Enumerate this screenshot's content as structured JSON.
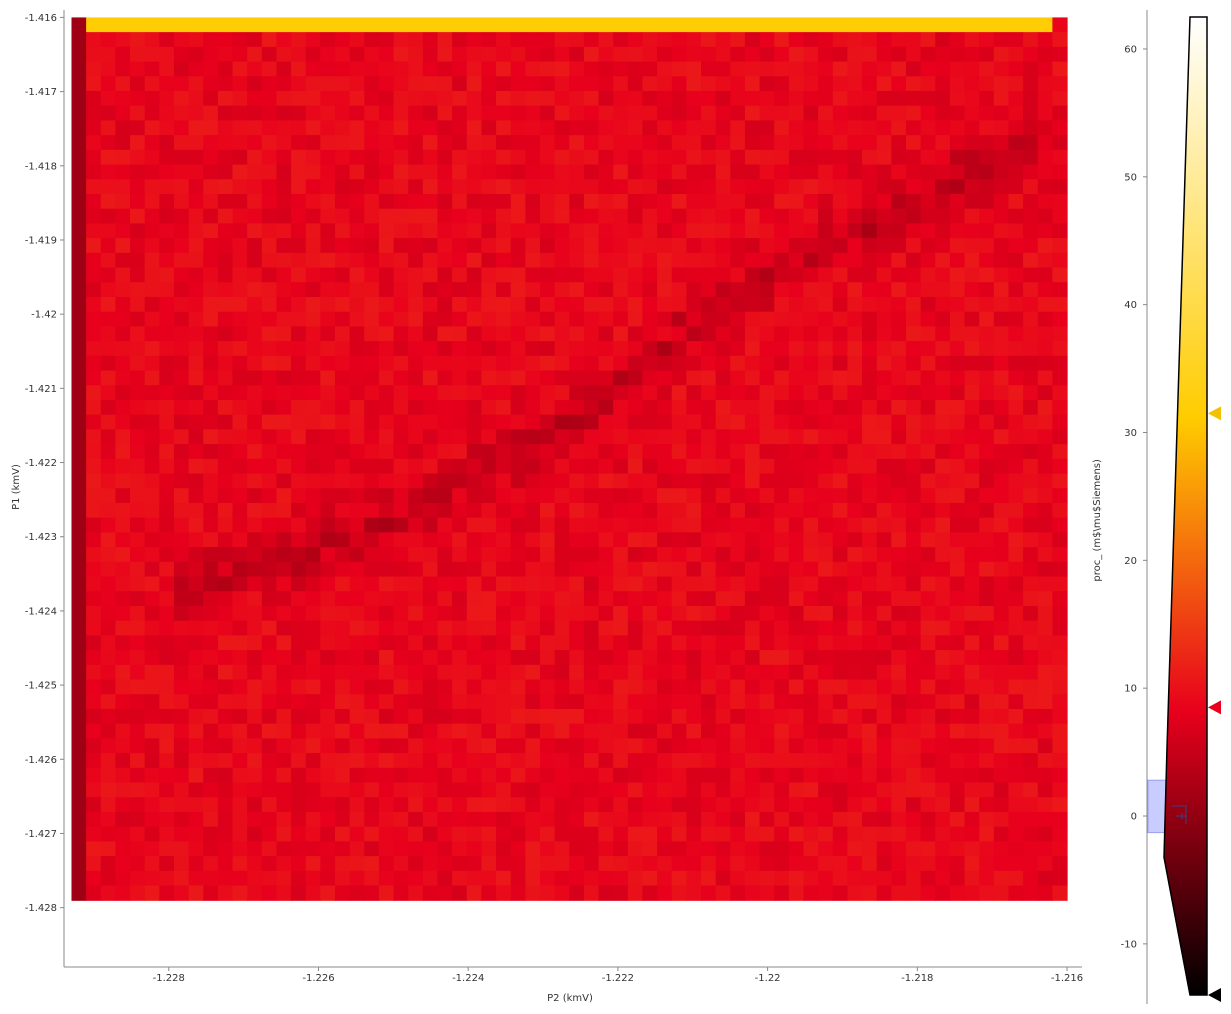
{
  "chart_data": {
    "type": "heatmap",
    "title": "",
    "xlabel": "P2 (kmV)",
    "ylabel": "P1 (kmV)",
    "xlim": [
      -1.2294,
      -1.2158
    ],
    "ylim": [
      -1.4288,
      -1.4159
    ],
    "x_ticks": [
      -1.228,
      -1.226,
      -1.224,
      -1.222,
      -1.22,
      -1.218,
      -1.216
    ],
    "x_tick_labels": [
      "-1.228",
      "-1.226",
      "-1.224",
      "-1.222",
      "-1.22",
      "-1.218",
      "-1.216"
    ],
    "y_ticks": [
      -1.416,
      -1.417,
      -1.418,
      -1.419,
      -1.42,
      -1.421,
      -1.422,
      -1.423,
      -1.424,
      -1.425,
      -1.426,
      -1.427,
      -1.428
    ],
    "y_tick_labels": [
      "-1.416",
      "-1.417",
      "-1.418",
      "-1.419",
      "-1.42",
      "-1.421",
      "-1.422",
      "-1.423",
      "-1.424",
      "-1.425",
      "-1.426",
      "-1.427",
      "-1.428"
    ],
    "grid": {
      "x_start": -1.2293,
      "x_end": -1.216,
      "n_cols": 68,
      "y_start": -1.416,
      "y_end": -1.4279,
      "n_rows": 60
    },
    "typical_value": 9.0,
    "first_row_value": 32.0,
    "first_col_value": 1.5,
    "features": [
      {
        "name": "ridge",
        "points": [
          [
            -1.2163,
            -1.4177
          ],
          [
            -1.2175,
            -1.4182
          ],
          [
            -1.219,
            -1.419
          ],
          [
            -1.22,
            -1.4195
          ],
          [
            -1.221,
            -1.4202
          ],
          [
            -1.222,
            -1.421
          ],
          [
            -1.2232,
            -1.4218
          ],
          [
            -1.2245,
            -1.4225
          ],
          [
            -1.226,
            -1.4232
          ],
          [
            -1.228,
            -1.4237
          ]
        ],
        "value": 4.5
      }
    ],
    "colorbar": {
      "label": "proc_ (m$\\mu$Siemens)",
      "ticks": [
        60,
        50,
        40,
        30,
        20,
        10,
        0,
        -10
      ],
      "tick_labels": [
        "60",
        "50",
        "40",
        "30",
        "20",
        "10",
        "0",
        "-10"
      ],
      "range": [
        -14,
        62.5
      ],
      "colormap": "hot",
      "levels": {
        "black": -14,
        "red": 8.5,
        "yellow": 31.5,
        "white": 62.5
      },
      "marker_values": [
        31.5,
        8.5,
        -14
      ],
      "marker_colors": [
        "#f2c200",
        "#e8001c",
        "#000000"
      ],
      "histogram_region": [
        -1.3,
        2.8
      ]
    }
  }
}
